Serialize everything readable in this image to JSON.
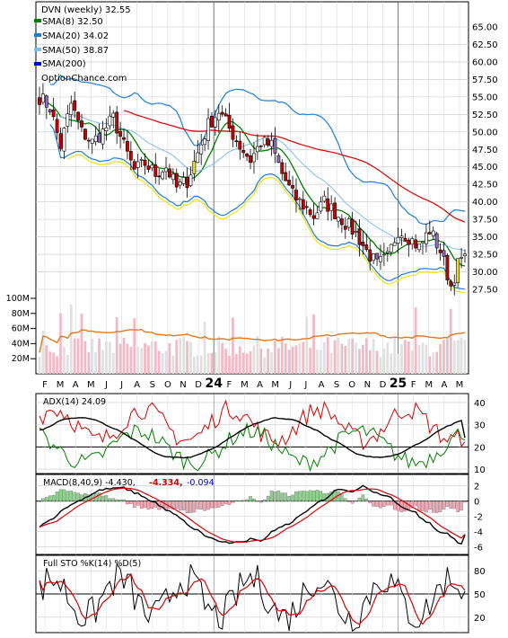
{
  "legend": {
    "title": "DVN (weekly) 32.55",
    "items": [
      {
        "label": "SMA(8) 32.50",
        "color": "#008000"
      },
      {
        "label": "SMA(20) 34.02",
        "color": "#1e7fd8"
      },
      {
        "label": "SMA(50) 38.87",
        "color": "#82bde8"
      },
      {
        "label": "SMA(200)",
        "color": "#0000cc"
      }
    ],
    "watermark": "OptionChance.com"
  },
  "price_axis": [
    "65.00",
    "62.50",
    "60.00",
    "57.50",
    "55.00",
    "52.50",
    "50.00",
    "47.50",
    "45.00",
    "42.50",
    "40.00",
    "37.50",
    "35.00",
    "32.50",
    "30.00",
    "27.50"
  ],
  "volume_axis": [
    "100M",
    "80M",
    "60M",
    "40M",
    "20M"
  ],
  "x_axis": [
    {
      "label": "F",
      "bold": false
    },
    {
      "label": "M",
      "bold": false
    },
    {
      "label": "A",
      "bold": false
    },
    {
      "label": "M",
      "bold": false
    },
    {
      "label": "J",
      "bold": false
    },
    {
      "label": "J",
      "bold": false
    },
    {
      "label": "A",
      "bold": false
    },
    {
      "label": "S",
      "bold": false
    },
    {
      "label": "O",
      "bold": false
    },
    {
      "label": "N",
      "bold": false
    },
    {
      "label": "D",
      "bold": false
    },
    {
      "label": "24",
      "bold": true
    },
    {
      "label": "F",
      "bold": false
    },
    {
      "label": "M",
      "bold": false
    },
    {
      "label": "A",
      "bold": false
    },
    {
      "label": "M",
      "bold": false
    },
    {
      "label": "J",
      "bold": false
    },
    {
      "label": "J",
      "bold": false
    },
    {
      "label": "A",
      "bold": false
    },
    {
      "label": "S",
      "bold": false
    },
    {
      "label": "O",
      "bold": false
    },
    {
      "label": "N",
      "bold": false
    },
    {
      "label": "D",
      "bold": false
    },
    {
      "label": "25",
      "bold": true
    },
    {
      "label": "F",
      "bold": false
    },
    {
      "label": "M",
      "bold": false
    },
    {
      "label": "A",
      "bold": false
    },
    {
      "label": "M",
      "bold": false
    }
  ],
  "adx": {
    "title": "ADX(14) 24.09",
    "axis": [
      "40",
      "30",
      "20",
      "10"
    ],
    "range": [
      8,
      44
    ]
  },
  "macd": {
    "title": "MACD(8,40,9) -4.430,",
    "value1": "-4.334,",
    "value2": "-0.094",
    "value1_color": "#dd0000",
    "value2_color": "#0000cc",
    "axis": [
      "2",
      "0",
      "-2",
      "-4",
      "-6"
    ],
    "range": [
      -7,
      3.5
    ]
  },
  "sto": {
    "title": "Full STO %K(14) %D(5)",
    "axis": [
      "80",
      "50",
      "20"
    ],
    "range": [
      0,
      100
    ]
  },
  "chart_data": [
    {
      "type": "candlestick",
      "title": "DVN (weekly) 32.55",
      "ylim": [
        25.0,
        67.5
      ],
      "weeks": 122,
      "close_anchors": [
        [
          0,
          55.0
        ],
        [
          3,
          53.5
        ],
        [
          6,
          48.0
        ],
        [
          9,
          54.0
        ],
        [
          12,
          50.0
        ],
        [
          15,
          48.5
        ],
        [
          18,
          50.0
        ],
        [
          21,
          52.0
        ],
        [
          24,
          48.0
        ],
        [
          27,
          44.5
        ],
        [
          30,
          45.5
        ],
        [
          33,
          44.0
        ],
        [
          36,
          45.0
        ],
        [
          39,
          42.0
        ],
        [
          42,
          43.0
        ],
        [
          45,
          47.0
        ],
        [
          48,
          51.0
        ],
        [
          51,
          53.0
        ],
        [
          54,
          50.5
        ],
        [
          57,
          48.0
        ],
        [
          60,
          46.0
        ],
        [
          63,
          48.5
        ],
        [
          66,
          48.0
        ],
        [
          69,
          44.0
        ],
        [
          72,
          41.0
        ],
        [
          75,
          39.5
        ],
        [
          78,
          38.0
        ],
        [
          81,
          40.0
        ],
        [
          84,
          38.5
        ],
        [
          87,
          37.0
        ],
        [
          90,
          35.5
        ],
        [
          93,
          33.0
        ],
        [
          96,
          31.0
        ],
        [
          99,
          32.0
        ],
        [
          102,
          36.0
        ],
        [
          105,
          35.0
        ],
        [
          108,
          33.5
        ],
        [
          111,
          36.0
        ],
        [
          114,
          33.0
        ],
        [
          117,
          28.0
        ],
        [
          119,
          31.0
        ],
        [
          121,
          32.55
        ]
      ],
      "sma_last": {
        "sma8": 32.5,
        "sma20": 34.02,
        "sma50": 38.87
      },
      "volume_ylim": [
        0,
        105
      ],
      "volume_unit": "M"
    },
    {
      "type": "line",
      "title": "ADX(14) 24.09",
      "series": [
        {
          "name": "ADX",
          "last": 24.09
        }
      ]
    },
    {
      "type": "line",
      "title": "MACD(8,40,9)",
      "series": [
        {
          "name": "MACD",
          "last": -4.43
        },
        {
          "name": "Signal",
          "last": -4.334
        },
        {
          "name": "Histogram",
          "last": -0.094
        }
      ]
    },
    {
      "type": "line",
      "title": "Full STO %K(14) %D(5)",
      "series": [
        {
          "name": "%K"
        },
        {
          "name": "%D"
        }
      ]
    }
  ]
}
